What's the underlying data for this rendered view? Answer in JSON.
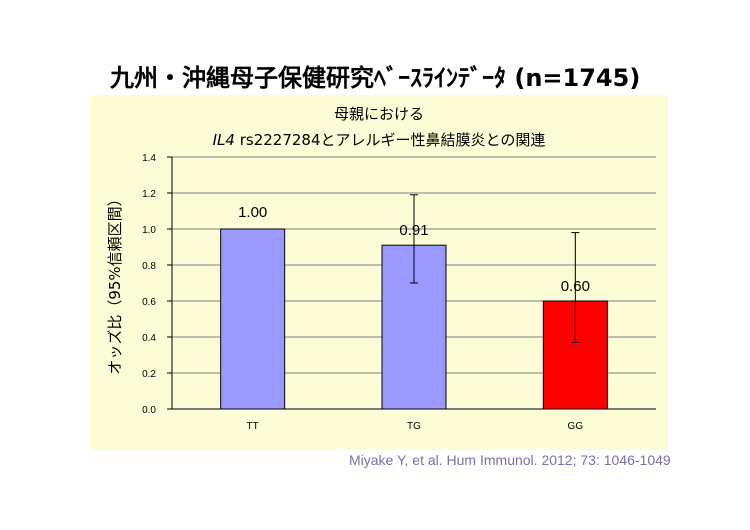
{
  "slide": {
    "title": "九州・沖縄母子保健研究ﾍﾞｰｽﾗｲﾝﾃﾞｰﾀ (n=1745)",
    "citation": "Miyake Y, et al. Hum Immunol. 2012; 73: 1046-1049"
  },
  "chart_data": {
    "type": "bar",
    "title_line1": "母親における",
    "title_line2_italic": "IL4",
    "title_line2_rest": " rs2227284とアレルギー性鼻結膜炎との関連",
    "ylabel": "オッズ比（95%信頼区間）",
    "ylim": [
      0,
      1.4
    ],
    "yticks": [
      "0.0",
      "0.2",
      "0.4",
      "0.6",
      "0.8",
      "1.0",
      "1.2",
      "1.4"
    ],
    "categories": [
      "TT",
      "TG",
      "GG"
    ],
    "values": [
      1.0,
      0.91,
      0.6
    ],
    "value_labels": [
      "1.00",
      "0.91",
      "0.60"
    ],
    "ci_lower": [
      null,
      0.7,
      0.37
    ],
    "ci_upper": [
      null,
      1.19,
      0.98
    ],
    "bar_colors": [
      "#9999FF",
      "#9999FF",
      "#FF0000"
    ],
    "grid": true
  }
}
